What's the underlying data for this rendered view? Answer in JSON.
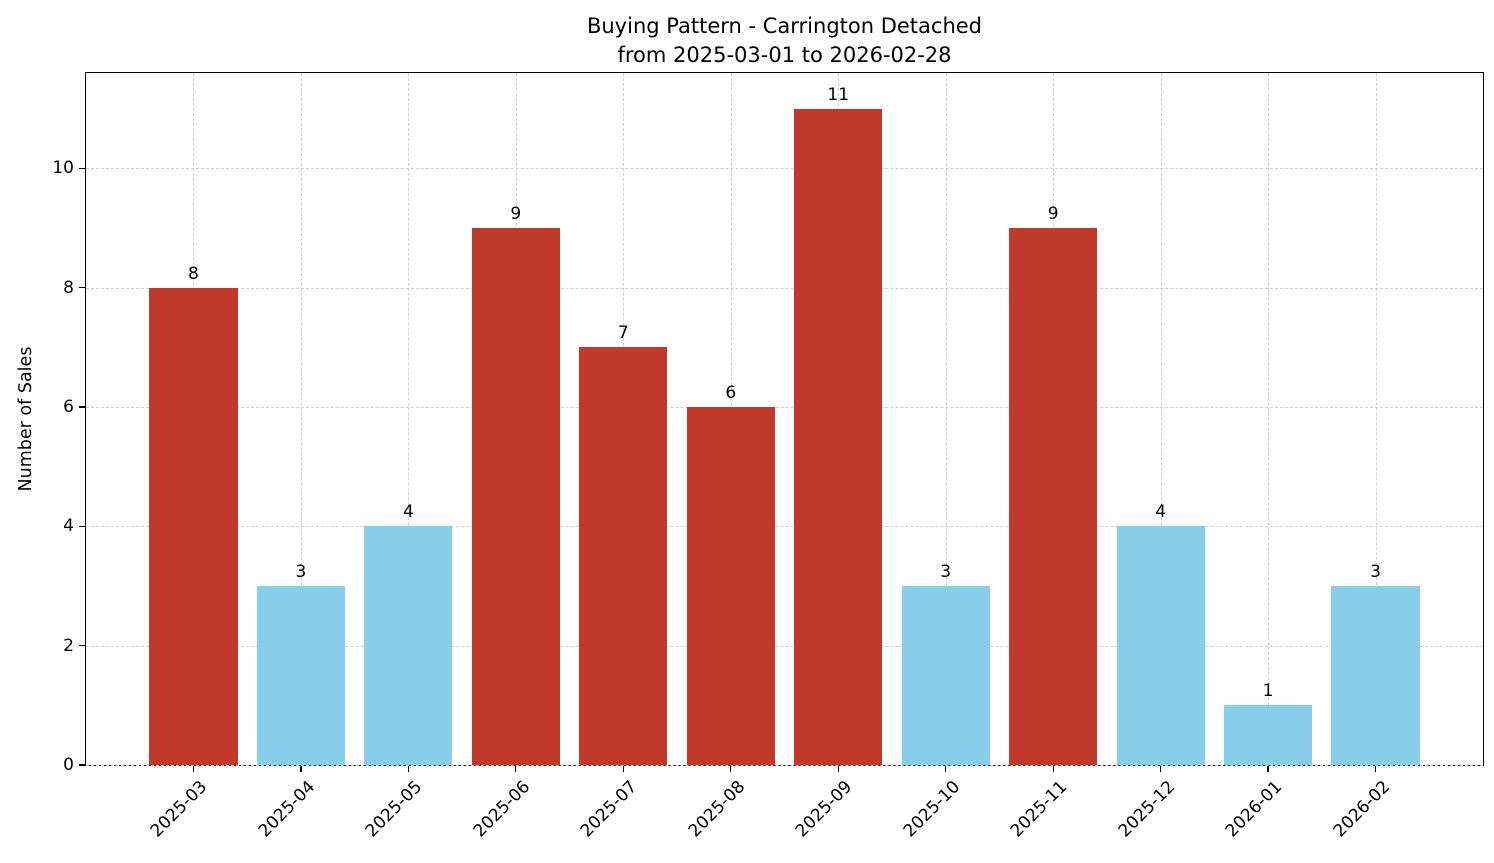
{
  "chart_data": {
    "type": "bar",
    "title": "Buying Pattern - Carrington Detached",
    "subtitle": "from 2025-03-01 to 2026-02-28",
    "xlabel": "",
    "ylabel": "Number of Sales",
    "categories": [
      "2025-03",
      "2025-04",
      "2025-05",
      "2025-06",
      "2025-07",
      "2025-08",
      "2025-09",
      "2025-10",
      "2025-11",
      "2025-12",
      "2026-01",
      "2026-02"
    ],
    "values": [
      8,
      3,
      4,
      9,
      7,
      6,
      11,
      3,
      9,
      4,
      1,
      3
    ],
    "bar_colors": [
      "#c0392b",
      "#87ceeb",
      "#87ceeb",
      "#c0392b",
      "#c0392b",
      "#c0392b",
      "#c0392b",
      "#87ceeb",
      "#c0392b",
      "#87ceeb",
      "#87ceeb",
      "#87ceeb"
    ],
    "value_labels": [
      "8",
      "3",
      "4",
      "9",
      "7",
      "6",
      "11",
      "3",
      "9",
      "4",
      "1",
      "3"
    ],
    "yticks": [
      0,
      2,
      4,
      6,
      8,
      10
    ],
    "ylim": [
      0,
      11.6
    ],
    "grid": "dashed",
    "legend": "none",
    "colors": {
      "high_month": "#c0392b",
      "low_month": "#87ceeb",
      "grid": "#cfcfcf",
      "text": "#000000"
    }
  }
}
